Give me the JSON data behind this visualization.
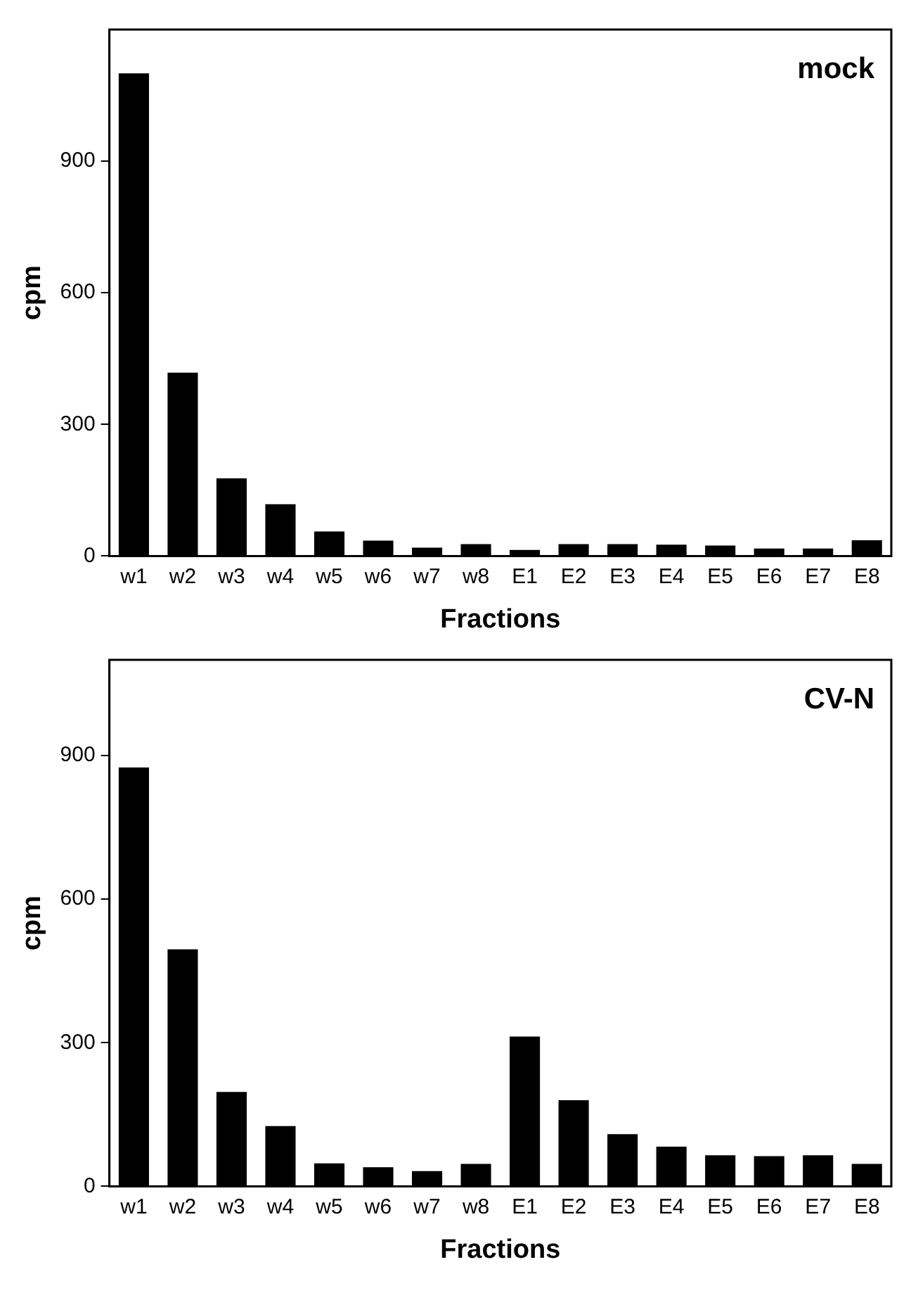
{
  "chart_data": [
    {
      "type": "bar",
      "title": "mock",
      "xlabel": "Fractions",
      "ylabel": "cpm",
      "categories": [
        "w1",
        "w2",
        "w3",
        "w4",
        "w5",
        "w6",
        "w7",
        "w8",
        "E1",
        "E2",
        "E3",
        "E4",
        "E5",
        "E6",
        "E7",
        "E8"
      ],
      "values": [
        1100,
        418,
        177,
        118,
        56,
        35,
        19,
        27,
        14,
        27,
        27,
        26,
        24,
        17,
        17,
        36
      ],
      "color": "#000000",
      "ylim": [
        0,
        1200
      ],
      "yticks": [
        0,
        300,
        600,
        900
      ],
      "grid": false
    },
    {
      "type": "bar",
      "title": "CV-N",
      "xlabel": "Fractions",
      "ylabel": "cpm",
      "categories": [
        "w1",
        "w2",
        "w3",
        "w4",
        "w5",
        "w6",
        "w7",
        "w8",
        "E1",
        "E2",
        "E3",
        "E4",
        "E5",
        "E6",
        "E7",
        "E8"
      ],
      "values": [
        875,
        495,
        197,
        126,
        48,
        40,
        32,
        47,
        313,
        180,
        109,
        83,
        65,
        63,
        65,
        47
      ],
      "color": "#000000",
      "ylim": [
        0,
        1100
      ],
      "yticks": [
        0,
        300,
        600,
        900
      ],
      "grid": false
    }
  ]
}
